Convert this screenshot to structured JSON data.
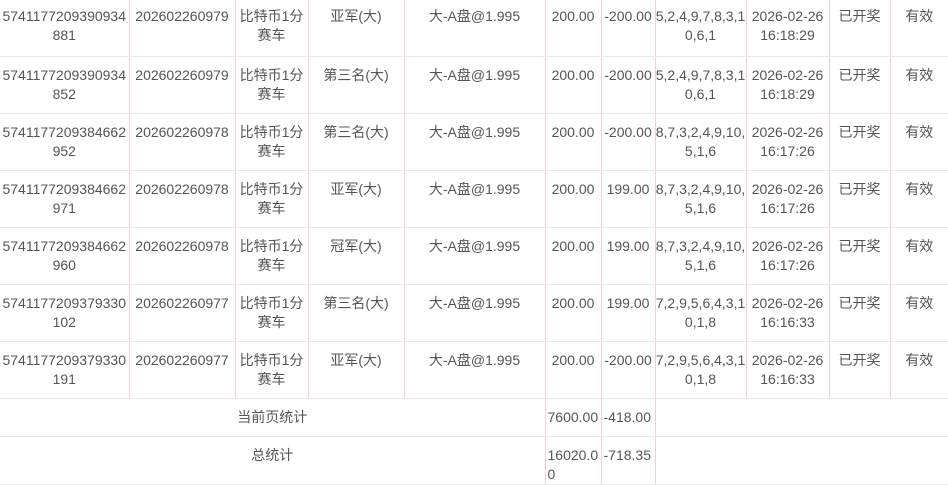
{
  "rows": [
    {
      "order_no": "5741177209390934881",
      "issue": "202602260979",
      "game": "比特币1分赛车",
      "play": "亚军(大)",
      "content": "大-A盘@1.995",
      "amount": "200.00",
      "profit": "-200.00",
      "result": "5,2,4,9,7,8,3,10,6,1",
      "time": "2026-02-26 16:18:29",
      "status": "已开奖",
      "valid": "有效"
    },
    {
      "order_no": "5741177209390934852",
      "issue": "202602260979",
      "game": "比特币1分赛车",
      "play": "第三名(大)",
      "content": "大-A盘@1.995",
      "amount": "200.00",
      "profit": "-200.00",
      "result": "5,2,4,9,7,8,3,10,6,1",
      "time": "2026-02-26 16:18:29",
      "status": "已开奖",
      "valid": "有效"
    },
    {
      "order_no": "5741177209384662952",
      "issue": "202602260978",
      "game": "比特币1分赛车",
      "play": "第三名(大)",
      "content": "大-A盘@1.995",
      "amount": "200.00",
      "profit": "-200.00",
      "result": "8,7,3,2,4,9,10,5,1,6",
      "time": "2026-02-26 16:17:26",
      "status": "已开奖",
      "valid": "有效"
    },
    {
      "order_no": "5741177209384662971",
      "issue": "202602260978",
      "game": "比特币1分赛车",
      "play": "亚军(大)",
      "content": "大-A盘@1.995",
      "amount": "200.00",
      "profit": "199.00",
      "result": "8,7,3,2,4,9,10,5,1,6",
      "time": "2026-02-26 16:17:26",
      "status": "已开奖",
      "valid": "有效"
    },
    {
      "order_no": "5741177209384662960",
      "issue": "202602260978",
      "game": "比特币1分赛车",
      "play": "冠军(大)",
      "content": "大-A盘@1.995",
      "amount": "200.00",
      "profit": "199.00",
      "result": "8,7,3,2,4,9,10,5,1,6",
      "time": "2026-02-26 16:17:26",
      "status": "已开奖",
      "valid": "有效"
    },
    {
      "order_no": "5741177209379330102",
      "issue": "202602260977",
      "game": "比特币1分赛车",
      "play": "第三名(大)",
      "content": "大-A盘@1.995",
      "amount": "200.00",
      "profit": "199.00",
      "result": "7,2,9,5,6,4,3,10,1,8",
      "time": "2026-02-26 16:16:33",
      "status": "已开奖",
      "valid": "有效"
    },
    {
      "order_no": "5741177209379330191",
      "issue": "202602260977",
      "game": "比特币1分赛车",
      "play": "亚军(大)",
      "content": "大-A盘@1.995",
      "amount": "200.00",
      "profit": "-200.00",
      "result": "7,2,9,5,6,4,3,10,1,8",
      "time": "2026-02-26 16:16:33",
      "status": "已开奖",
      "valid": "有效"
    }
  ],
  "page_total": {
    "label": "当前页统计",
    "amount": "7600.00",
    "profit": "-418.00"
  },
  "grand_total": {
    "label": "总统计",
    "amount": "16020.00",
    "profit": "-718.35"
  }
}
